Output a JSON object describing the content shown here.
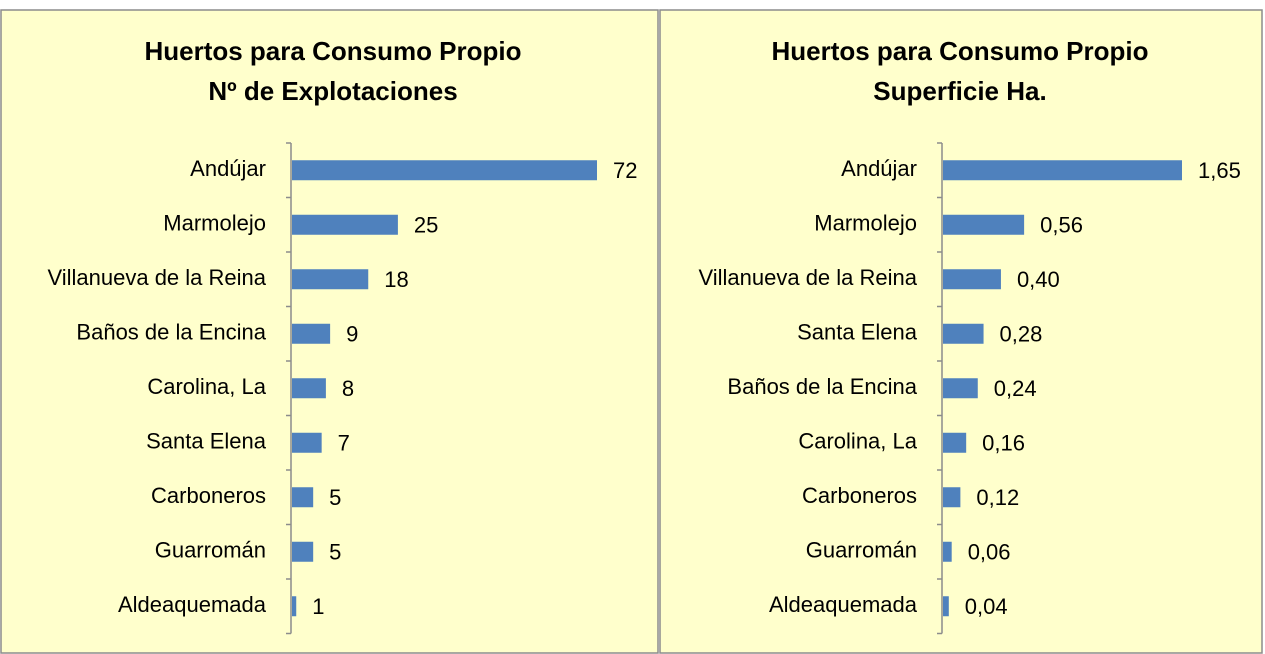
{
  "chart_data": [
    {
      "type": "bar",
      "orientation": "horizontal",
      "title": "Huertos para Consumo Propio",
      "subtitle": "Nº de Explotaciones",
      "categories": [
        "Andújar",
        "Marmolejo",
        "Villanueva de la Reina",
        "Baños de la Encina",
        "Carolina, La",
        "Santa Elena",
        "Carboneros",
        "Guarromán",
        "Aldeaquemada"
      ],
      "values": [
        72,
        25,
        18,
        9,
        8,
        7,
        5,
        5,
        1
      ],
      "color": "#4f81bd"
    },
    {
      "type": "bar",
      "orientation": "horizontal",
      "title": "Huertos para Consumo Propio",
      "subtitle": "Superficie Ha.",
      "categories": [
        "Andújar",
        "Marmolejo",
        "Villanueva de la Reina",
        "Santa Elena",
        "Baños de la Encina",
        "Carolina, La",
        "Carboneros",
        "Guarromán",
        "Aldeaquemada"
      ],
      "values": [
        1.65,
        0.56,
        0.4,
        0.28,
        0.24,
        0.16,
        0.12,
        0.06,
        0.04
      ],
      "value_labels": [
        "1,65",
        "0,56",
        "0,40",
        "0,28",
        "0,24",
        "0,16",
        "0,12",
        "0,06",
        "0,04"
      ],
      "color": "#4f81bd"
    }
  ]
}
